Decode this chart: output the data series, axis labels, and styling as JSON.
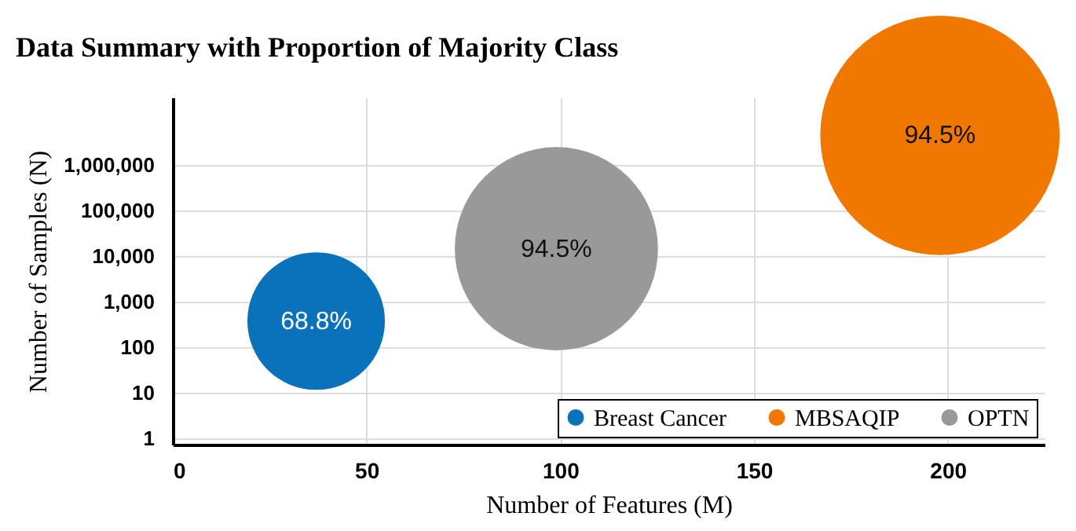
{
  "chart_data": {
    "type": "bubble",
    "title": "Data Summary with Proportion of Majority Class",
    "xlabel": "Number of Features (M)",
    "ylabel": "Number of Samples (N)",
    "log": "y",
    "grid": true,
    "legend": "bottom right",
    "xlim": [
      0,
      225
    ],
    "xticks": [
      0,
      50,
      100,
      150,
      200
    ],
    "ylim": [
      0.72,
      30000000
    ],
    "yticks": [
      1,
      10,
      100,
      {
        "value": 1000,
        "label": "1,000"
      },
      {
        "value": 10000,
        "label": "10,000"
      },
      {
        "value": 100000,
        "label": "100,000"
      },
      {
        "value": 1000000,
        "label": "1,000,000"
      }
    ],
    "series": [
      {
        "name": "Breast Cancer",
        "color": "#0a72ba",
        "x": [
          37
        ],
        "values": [
          370
        ],
        "sizes": [
          0.33
        ]
      },
      {
        "name": "MBSAQIP",
        "color": "#f07700",
        "x": [
          198
        ],
        "values": [
          4400000
        ],
        "sizes": [
          1
        ]
      },
      {
        "name": "OPTN",
        "color": "#999999",
        "x": [
          99
        ],
        "values": [
          14300
        ],
        "sizes": [
          0.72
        ]
      }
    ],
    "annotations": [
      {
        "text": "68.8%",
        "x": 37,
        "y": 370
      },
      {
        "text": "94.5%",
        "x": 198,
        "y": 4400000
      },
      {
        "text": "94.5%",
        "x": 99,
        "y": 14300
      }
    ]
  }
}
